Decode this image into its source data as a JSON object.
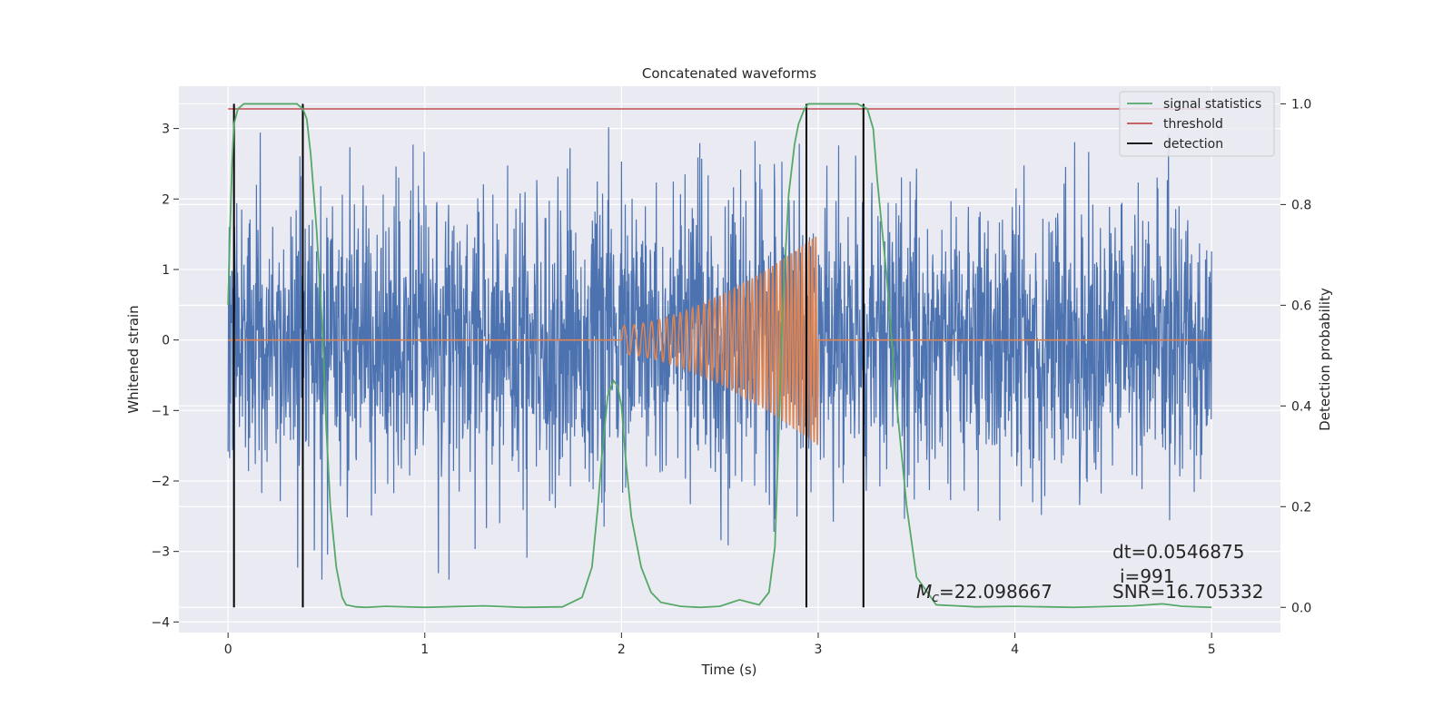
{
  "chart_data": {
    "type": "line",
    "title": "Concatenated waveforms",
    "xlabel": "Time (s)",
    "ylabel": "Whitened strain",
    "ylabel_right": "Detection probability",
    "xlim": [
      -0.25,
      5.35
    ],
    "ylim": [
      -4.15,
      3.6
    ],
    "ylim_right": [
      -0.05,
      1.035
    ],
    "x_ticks": [
      0,
      1,
      2,
      3,
      4,
      5
    ],
    "x_tick_labels": [
      "0",
      "1",
      "2",
      "3",
      "4",
      "5"
    ],
    "y_ticks": [
      -4,
      -3,
      -2,
      -1,
      0,
      1,
      2,
      3
    ],
    "y_tick_labels": [
      "−4",
      "−3",
      "−2",
      "−1",
      "0",
      "1",
      "2",
      "3"
    ],
    "y_right_ticks": [
      0,
      0.2,
      0.4,
      0.6,
      0.8,
      1.0
    ],
    "y_right_tick_labels": [
      "0.0",
      "0.2",
      "0.4",
      "0.6",
      "0.8",
      "1.0"
    ],
    "grid": true,
    "legend_position": "top-right",
    "legend": [
      {
        "label": "signal statistics",
        "color": "#55a868"
      },
      {
        "label": "threshold",
        "color": "#c44e52"
      },
      {
        "label": "detection",
        "color": "#000000"
      }
    ],
    "strain": {
      "color": "#4c72b0",
      "t_start": 0,
      "t_end": 5,
      "envelope_sigma": 1.0
    },
    "injected_signal": {
      "color": "#dd8452",
      "t_start": 2.0,
      "t_end": 3.0,
      "start_amplitude": 0.2,
      "end_amplitude": 1.5,
      "f_start": 18,
      "f_end": 60
    },
    "signal_statistics": {
      "x": [
        0,
        0.01,
        0.02,
        0.03,
        0.05,
        0.08,
        0.1,
        0.2,
        0.3,
        0.35,
        0.38,
        0.4,
        0.42,
        0.45,
        0.48,
        0.5,
        0.52,
        0.55,
        0.58,
        0.6,
        0.65,
        0.7,
        0.8,
        1.0,
        1.3,
        1.5,
        1.7,
        1.8,
        1.85,
        1.88,
        1.9,
        1.93,
        1.96,
        1.98,
        2.0,
        2.02,
        2.05,
        2.1,
        2.15,
        2.2,
        2.3,
        2.4,
        2.5,
        2.6,
        2.65,
        2.7,
        2.75,
        2.78,
        2.8,
        2.82,
        2.85,
        2.88,
        2.9,
        2.93,
        2.95,
        3.0,
        3.1,
        3.2,
        3.25,
        3.28,
        3.3,
        3.35,
        3.4,
        3.45,
        3.5,
        3.6,
        3.8,
        4.0,
        4.3,
        4.6,
        4.75,
        4.85,
        5.0
      ],
      "y": [
        0.6,
        0.75,
        0.88,
        0.96,
        0.99,
        1.0,
        1.0,
        1.0,
        1.0,
        1.0,
        0.99,
        0.97,
        0.9,
        0.75,
        0.55,
        0.35,
        0.2,
        0.08,
        0.02,
        0.005,
        0.001,
        0.0,
        0.002,
        0.0,
        0.003,
        0.0,
        0.001,
        0.02,
        0.08,
        0.2,
        0.3,
        0.42,
        0.45,
        0.44,
        0.4,
        0.3,
        0.18,
        0.08,
        0.03,
        0.01,
        0.002,
        0.0,
        0.002,
        0.015,
        0.01,
        0.005,
        0.03,
        0.12,
        0.35,
        0.6,
        0.82,
        0.92,
        0.96,
        0.99,
        1.0,
        1.0,
        1.0,
        1.0,
        0.99,
        0.95,
        0.85,
        0.65,
        0.4,
        0.2,
        0.06,
        0.005,
        0.001,
        0.002,
        0.0,
        0.003,
        0.007,
        0.002,
        0.0
      ],
      "color": "#55a868"
    },
    "threshold": {
      "value": 0.99,
      "x_start": 0,
      "x_end": 5,
      "color": "#c44e52"
    },
    "detections": [
      0.03,
      0.38,
      2.94,
      3.23
    ],
    "annotations": {
      "dt": "dt=0.0546875",
      "i": "i=991",
      "snr": "SNR=16.705332",
      "mc_symbol": "M",
      "mc_sub": "c",
      "mc_value": "=22.098667"
    }
  }
}
